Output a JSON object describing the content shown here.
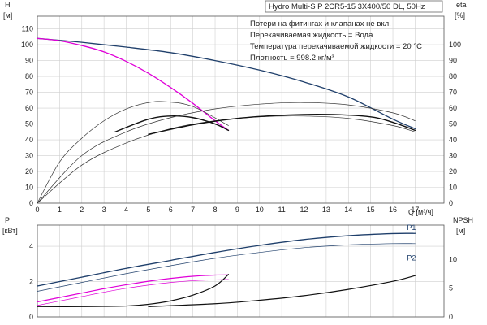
{
  "chart_data": [
    {
      "id": "top",
      "type": "line",
      "title": "Hydro Multi-S P 2CR5-15 3X400/50 DL, 50Hz",
      "notes": [
        "Потери на фитингах и клапанах не вкл.",
        "Перекачиваемая жидкость = Вода",
        "Температура перекачиваемой жидкости = 20 °C",
        "Плотность = 998.2 кг/м³"
      ],
      "ylabel_left": [
        "H",
        "[м]"
      ],
      "ylabel_right": [
        "eta",
        "[%]"
      ],
      "xlabel": "Q [м³/ч]",
      "xlim": [
        0,
        18.3
      ],
      "ylim_left": [
        0,
        118
      ],
      "ylim_right": [
        0,
        118
      ],
      "x_ticks": [
        0,
        1,
        2,
        3,
        4,
        5,
        6,
        7,
        8,
        9,
        10,
        11,
        12,
        13,
        14,
        15,
        16,
        17
      ],
      "y_ticks_left": [
        0,
        10,
        20,
        30,
        40,
        50,
        60,
        70,
        80,
        90,
        100,
        110
      ],
      "y_ticks_right": [
        0,
        10,
        20,
        30,
        40,
        50,
        60,
        70,
        80,
        90,
        100
      ],
      "grid": true,
      "series": [
        {
          "axis": "left",
          "color": "#1f3f6b",
          "width": 1.3,
          "x": [
            0,
            2,
            4,
            6,
            8,
            10,
            12,
            14,
            16,
            17
          ],
          "y": [
            104,
            101.5,
            98.5,
            95,
            90,
            84,
            76.5,
            67,
            53,
            47
          ]
        },
        {
          "axis": "left",
          "color": "#e000d8",
          "width": 1.3,
          "x": [
            0,
            1,
            2,
            3,
            4,
            5,
            6,
            7,
            8,
            8.6
          ],
          "y": [
            104,
            102.5,
            99.5,
            95.5,
            89.5,
            82,
            73,
            63,
            52,
            46
          ]
        },
        {
          "axis": "right",
          "color": "#333333",
          "width": 0.7,
          "x": [
            0,
            1,
            2,
            3,
            4,
            5,
            5.8,
            7,
            8.6
          ],
          "y": [
            0,
            26,
            41,
            52,
            59.5,
            63.5,
            64,
            61,
            49
          ]
        },
        {
          "axis": "right",
          "color": "#111111",
          "width": 1.4,
          "x": [
            3.5,
            5,
            6,
            7,
            8,
            8.6
          ],
          "y": [
            45,
            53,
            55,
            54,
            50,
            46
          ]
        },
        {
          "axis": "right",
          "color": "#333333",
          "width": 0.7,
          "x": [
            0,
            2,
            4,
            6,
            8,
            10,
            12,
            14,
            16,
            17
          ],
          "y": [
            0,
            30,
            45,
            54,
            59.5,
            62.5,
            63.5,
            62,
            57,
            52
          ]
        },
        {
          "axis": "right",
          "color": "#333333",
          "width": 0.7,
          "x": [
            0,
            2,
            4,
            6,
            8,
            10,
            12,
            14,
            16,
            17
          ],
          "y": [
            0,
            24,
            38,
            47,
            52,
            54.5,
            55,
            53.5,
            49,
            45
          ]
        },
        {
          "axis": "right",
          "color": "#111111",
          "width": 1.4,
          "x": [
            5,
            7,
            9,
            11,
            13,
            15,
            16,
            17
          ],
          "y": [
            43.5,
            49.5,
            53.5,
            55.5,
            56,
            54.5,
            51,
            46
          ]
        }
      ]
    },
    {
      "id": "bottom",
      "type": "line",
      "ylabel_left": [
        "P",
        "[кВт]"
      ],
      "ylabel_right": [
        "NPSH",
        "[м]"
      ],
      "xlim": [
        0,
        18.3
      ],
      "ylim_left": [
        0,
        5.2
      ],
      "ylim_right": [
        0,
        16
      ],
      "x_ticks": [
        0,
        1,
        2,
        3,
        4,
        5,
        6,
        7,
        8,
        9,
        10,
        11,
        12,
        13,
        14,
        15,
        16,
        17
      ],
      "y_ticks_left": [
        0,
        2,
        4
      ],
      "y_ticks_right": [
        0,
        5,
        10
      ],
      "grid": true,
      "series_labels": [
        {
          "text": "P1",
          "x": 17,
          "y": 4.73
        },
        {
          "text": "P2",
          "x": 17,
          "y": 3.65
        }
      ],
      "series": [
        {
          "axis": "left",
          "color": "#1f3f6b",
          "width": 1.3,
          "x": [
            0,
            2,
            4,
            6,
            8,
            10,
            12,
            14,
            16,
            17
          ],
          "y": [
            1.75,
            2.25,
            2.75,
            3.2,
            3.65,
            4.05,
            4.38,
            4.6,
            4.72,
            4.73
          ]
        },
        {
          "axis": "left",
          "color": "#1f3f6b",
          "width": 0.7,
          "x": [
            0,
            2,
            4,
            6,
            8,
            10,
            12,
            14,
            16,
            17
          ],
          "y": [
            1.45,
            1.95,
            2.45,
            2.9,
            3.32,
            3.65,
            3.92,
            4.08,
            4.15,
            4.15
          ]
        },
        {
          "axis": "left",
          "color": "#e000d8",
          "width": 1.2,
          "x": [
            0,
            1,
            2,
            3,
            4,
            5,
            6,
            7,
            8,
            8.6
          ],
          "y": [
            0.85,
            1.1,
            1.35,
            1.6,
            1.82,
            2.02,
            2.18,
            2.3,
            2.37,
            2.38
          ]
        },
        {
          "axis": "left",
          "color": "#e000d8",
          "width": 0.7,
          "x": [
            0,
            1,
            2,
            3,
            4,
            5,
            6,
            7,
            8,
            8.6
          ],
          "y": [
            0.65,
            0.9,
            1.15,
            1.4,
            1.62,
            1.8,
            1.95,
            2.05,
            2.1,
            2.12
          ]
        },
        {
          "axis": "right",
          "color": "#111111",
          "width": 1.2,
          "x": [
            0,
            2,
            4,
            5,
            6,
            7,
            8,
            8.6
          ],
          "y": [
            1.8,
            1.8,
            1.9,
            2.2,
            2.8,
            3.8,
            5.4,
            7.4
          ]
        },
        {
          "axis": "right",
          "color": "#111111",
          "width": 1.2,
          "x": [
            5,
            8,
            10,
            12,
            14,
            16,
            17
          ],
          "y": [
            1.8,
            2.3,
            2.9,
            3.7,
            4.8,
            6.2,
            7.2
          ]
        }
      ]
    }
  ]
}
